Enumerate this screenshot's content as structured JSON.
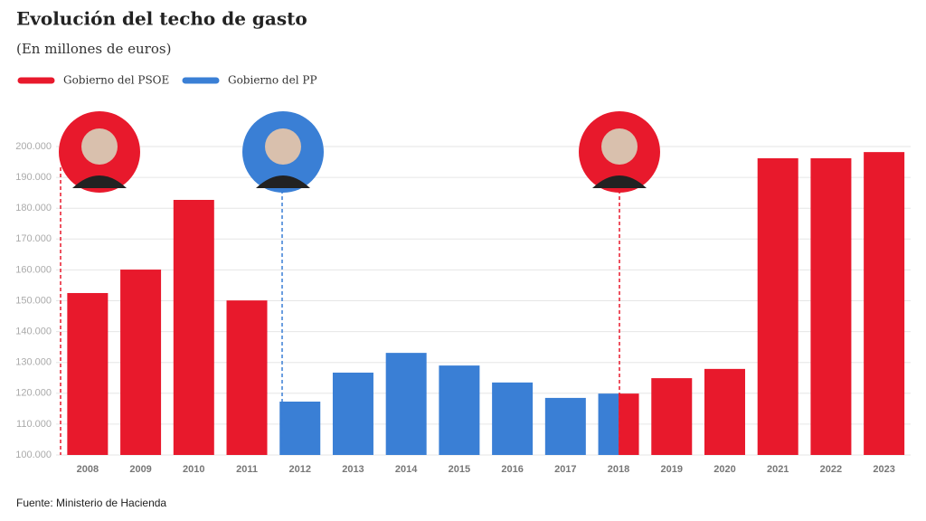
{
  "chart_data": {
    "type": "bar",
    "title": "Evolución del techo de gasto",
    "subtitle": "(En millones de euros)",
    "source": "Fuente: Ministerio de Hacienda",
    "categories": [
      "2008",
      "2009",
      "2010",
      "2011",
      "2012",
      "2013",
      "2014",
      "2015",
      "2016",
      "2017",
      "2018",
      "2019",
      "2020",
      "2021",
      "2022",
      "2023"
    ],
    "series": [
      {
        "name": "Gobierno del PSOE",
        "color": "#e8192c",
        "values": [
          152500,
          160100,
          182700,
          150100,
          null,
          null,
          null,
          null,
          null,
          null,
          119900,
          124900,
          127900,
          196200,
          196200,
          198200
        ]
      },
      {
        "name": "Gobierno del PP",
        "color": "#3a7fd5",
        "values": [
          null,
          null,
          null,
          null,
          117300,
          126700,
          133100,
          129000,
          123500,
          118500,
          119900,
          null,
          null,
          null,
          null,
          null
        ]
      }
    ],
    "ylim": [
      100000,
      200000
    ],
    "yticks": [
      {
        "value": 100000,
        "label": "100.000"
      },
      {
        "value": 110000,
        "label": "110.000"
      },
      {
        "value": 120000,
        "label": "120.000"
      },
      {
        "value": 130000,
        "label": "130.000"
      },
      {
        "value": 140000,
        "label": "140.000"
      },
      {
        "value": 150000,
        "label": "150.000"
      },
      {
        "value": 160000,
        "label": "160.000"
      },
      {
        "value": 170000,
        "label": "170.000"
      },
      {
        "value": 180000,
        "label": "180.000"
      },
      {
        "value": 190000,
        "label": "190.000"
      },
      {
        "value": 200000,
        "label": "200.000"
      }
    ],
    "grid": true,
    "legend": "top-left"
  }
}
